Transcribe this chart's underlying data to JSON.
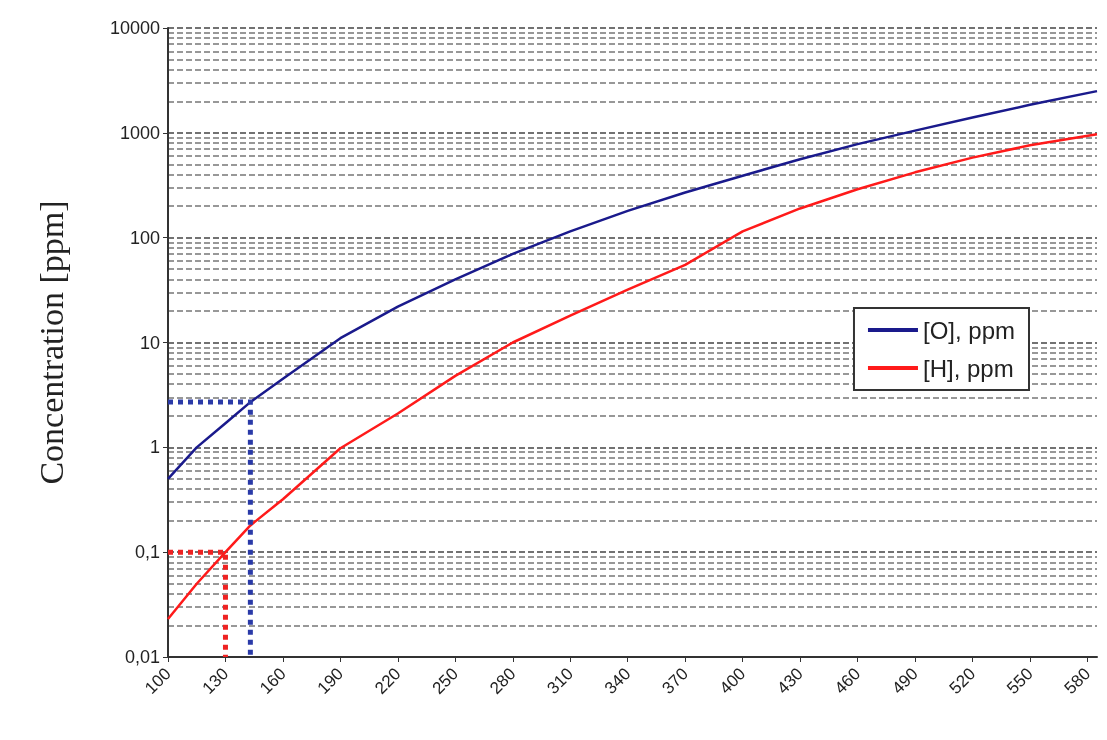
{
  "chart_data": {
    "type": "line",
    "ylabel": "Concentration [ppm]",
    "log": "y",
    "grid": "y",
    "legend": "right",
    "marker": "none",
    "xlim": [
      100,
      585
    ],
    "xticks": [
      100,
      130,
      160,
      190,
      220,
      250,
      280,
      310,
      340,
      370,
      400,
      430,
      460,
      490,
      520,
      550,
      580
    ],
    "ylim": [
      0.01,
      10000
    ],
    "yticks": [
      {
        "value": 0.01,
        "label": "0,01"
      },
      {
        "value": 0.1,
        "label": "0,1"
      },
      1,
      10,
      100,
      1000,
      10000
    ],
    "series": [
      {
        "name": "[O], ppm",
        "color": "#1a1a8c",
        "x": [
          100,
          115,
          130,
          143,
          160,
          190,
          220,
          250,
          280,
          310,
          340,
          370,
          400,
          430,
          460,
          490,
          520,
          550,
          585
        ],
        "values": [
          0.5,
          1.0,
          1.7,
          2.7,
          4.5,
          11,
          22,
          40,
          70,
          115,
          180,
          270,
          390,
          560,
          780,
          1050,
          1400,
          1850,
          2500
        ]
      },
      {
        "name": "[H], ppm",
        "color": "#ff1a1a",
        "x": [
          100,
          115,
          130,
          143,
          160,
          190,
          220,
          250,
          280,
          310,
          340,
          370,
          400,
          430,
          460,
          490,
          520,
          550,
          585
        ],
        "values": [
          0.023,
          0.05,
          0.1,
          0.18,
          0.32,
          0.98,
          2.1,
          4.8,
          10,
          18,
          32,
          55,
          115,
          190,
          290,
          420,
          580,
          760,
          970
        ]
      },
      {
        "color": "#2a3aa8",
        "line_style": "dotted",
        "x": [
          100,
          143,
          143
        ],
        "values": [
          2.7,
          2.7,
          0.01
        ]
      },
      {
        "color": "#ee2222",
        "line_style": "dotted",
        "x": [
          100,
          130,
          130
        ],
        "values": [
          0.1,
          0.1,
          0.01
        ]
      }
    ]
  }
}
